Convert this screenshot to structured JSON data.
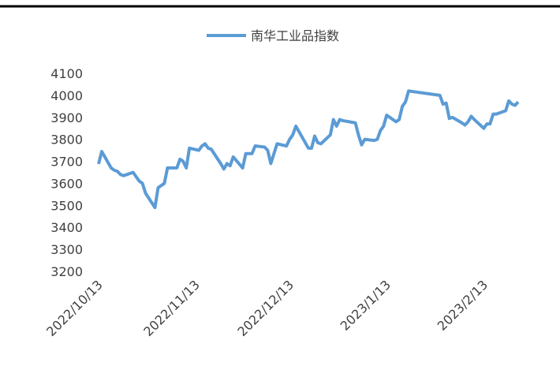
{
  "chart_data": {
    "type": "line",
    "title": null,
    "x": [
      "2022/10/13",
      "2022/10/14",
      "2022/10/17",
      "2022/10/18",
      "2022/10/19",
      "2022/10/20",
      "2022/10/21",
      "2022/10/24",
      "2022/10/25",
      "2022/10/26",
      "2022/10/27",
      "2022/10/28",
      "2022/10/31",
      "2022/11/1",
      "2022/11/2",
      "2022/11/3",
      "2022/11/4",
      "2022/11/7",
      "2022/11/8",
      "2022/11/9",
      "2022/11/10",
      "2022/11/11",
      "2022/11/14",
      "2022/11/15",
      "2022/11/16",
      "2022/11/17",
      "2022/11/18",
      "2022/11/21",
      "2022/11/22",
      "2022/11/23",
      "2022/11/24",
      "2022/11/25",
      "2022/11/28",
      "2022/11/29",
      "2022/11/30",
      "2022/12/1",
      "2022/12/2",
      "2022/12/5",
      "2022/12/6",
      "2022/12/7",
      "2022/12/8",
      "2022/12/9",
      "2022/12/12",
      "2022/12/13",
      "2022/12/14",
      "2022/12/15",
      "2022/12/16",
      "2022/12/19",
      "2022/12/20",
      "2022/12/21",
      "2022/12/22",
      "2022/12/23",
      "2022/12/26",
      "2022/12/27",
      "2022/12/28",
      "2022/12/29",
      "2022/12/30",
      "2023/1/3",
      "2023/1/4",
      "2023/1/5",
      "2023/1/6",
      "2023/1/9",
      "2023/1/10",
      "2023/1/11",
      "2023/1/12",
      "2023/1/13",
      "2023/1/16",
      "2023/1/17",
      "2023/1/18",
      "2023/1/19",
      "2023/1/20",
      "2023/1/30",
      "2023/1/31",
      "2023/2/1",
      "2023/2/2",
      "2023/2/3",
      "2023/2/6",
      "2023/2/7",
      "2023/2/8",
      "2023/2/9",
      "2023/2/10",
      "2023/2/13",
      "2023/2/14",
      "2023/2/15",
      "2023/2/16",
      "2023/2/17",
      "2023/2/20",
      "2023/2/21",
      "2023/2/22",
      "2023/2/23",
      "2023/2/24"
    ],
    "series": [
      {
        "name": "南华工业品指数",
        "color": "#5b9bd5",
        "values": [
          3688,
          3745,
          3670,
          3660,
          3655,
          3640,
          3635,
          3650,
          3630,
          3610,
          3600,
          3555,
          3490,
          3580,
          3590,
          3600,
          3670,
          3670,
          3710,
          3700,
          3670,
          3760,
          3750,
          3770,
          3780,
          3760,
          3755,
          3690,
          3665,
          3690,
          3680,
          3720,
          3670,
          3735,
          3735,
          3735,
          3770,
          3765,
          3750,
          3690,
          3735,
          3780,
          3770,
          3800,
          3820,
          3860,
          3835,
          3760,
          3760,
          3815,
          3785,
          3780,
          3820,
          3890,
          3860,
          3890,
          3885,
          3875,
          3820,
          3775,
          3800,
          3795,
          3800,
          3840,
          3860,
          3910,
          3880,
          3890,
          3950,
          3970,
          4020,
          4000,
          3960,
          3965,
          3895,
          3900,
          3875,
          3865,
          3880,
          3905,
          3890,
          3850,
          3870,
          3870,
          3915,
          3915,
          3930,
          3975,
          3960,
          3955,
          3970
        ]
      }
    ],
    "xlim": [
      "2022/10/13",
      "2023/2/24"
    ],
    "xticks": [
      "2022/10/13",
      "2022/11/13",
      "2022/12/13",
      "2023/1/13",
      "2023/2/13"
    ],
    "ylim": [
      3200,
      4100
    ],
    "yticks": [
      3200,
      3300,
      3400,
      3500,
      3600,
      3700,
      3800,
      3900,
      4000,
      4100
    ],
    "grid": false,
    "legend": "top"
  }
}
